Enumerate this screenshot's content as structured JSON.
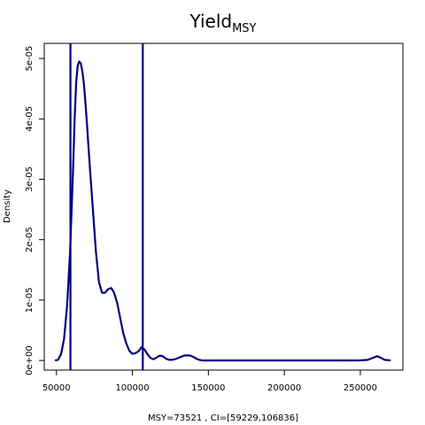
{
  "chart_data": {
    "type": "line",
    "title": {
      "main": "Yield",
      "subscript": "MSY"
    },
    "xlabel": "MSY=73521 , CI=[59229,106836]",
    "ylabel": "Density",
    "xlim": [
      42000,
      278000
    ],
    "ylim": [
      -1.6e-06,
      5.25e-05
    ],
    "x_ticks": [
      {
        "value": 50000,
        "label": "50000"
      },
      {
        "value": 100000,
        "label": "100000"
      },
      {
        "value": 150000,
        "label": "150000"
      },
      {
        "value": 200000,
        "label": "200000"
      },
      {
        "value": 250000,
        "label": "250000"
      }
    ],
    "y_ticks": [
      {
        "value": 0,
        "label": "0e+00"
      },
      {
        "value": 1e-05,
        "label": "1e-05"
      },
      {
        "value": 2e-05,
        "label": "2e-05"
      },
      {
        "value": 3e-05,
        "label": "3e-05"
      },
      {
        "value": 4e-05,
        "label": "4e-05"
      },
      {
        "value": 5e-05,
        "label": "5e-05"
      }
    ],
    "grid": false,
    "line_color": "#000080",
    "ci_lines": [
      59229,
      106836
    ],
    "series": [
      {
        "x": [
          49000,
          51000,
          53000,
          55000,
          57000,
          59000,
          61000,
          62000,
          63000,
          64000,
          65000,
          66000,
          67000,
          68000,
          69000,
          70000,
          72000,
          74000,
          76000,
          78000,
          80000,
          82000,
          84000,
          86000,
          88000,
          90000,
          92000,
          94000,
          96000,
          98000,
          100000,
          102000,
          104000,
          106000,
          108000,
          110000,
          112000,
          114000,
          116000,
          118000,
          120000,
          122000,
          124000,
          126000,
          128000,
          130000,
          132000,
          134000,
          136000,
          138000,
          140000,
          142000,
          144000,
          146000,
          148000,
          150000,
          160000,
          180000,
          200000,
          220000,
          240000,
          250000,
          255000,
          258000,
          261000,
          263000,
          266000,
          270000
        ],
        "y": [
          0,
          1e-07,
          1e-06,
          3.5e-06,
          9e-06,
          1.8e-05,
          3.2e-05,
          4e-05,
          4.6e-05,
          4.88e-05,
          4.95e-05,
          4.92e-05,
          4.8e-05,
          4.6e-05,
          4.3e-05,
          3.95e-05,
          3.2e-05,
          2.5e-05,
          1.8e-05,
          1.3e-05,
          1.12e-05,
          1.12e-05,
          1.18e-05,
          1.2e-05,
          1.12e-05,
          9.5e-06,
          7e-06,
          4.5e-06,
          2.8e-06,
          1.6e-06,
          1.1e-06,
          1.2e-06,
          1.5e-06,
          2.2e-06,
          1.8e-06,
          1e-06,
          4e-07,
          2e-07,
          5e-07,
          8e-07,
          7e-07,
          3e-07,
          1e-07,
          1e-07,
          2e-07,
          4e-07,
          6e-07,
          8e-07,
          8.5e-07,
          8e-07,
          6e-07,
          3e-07,
          1e-07,
          0,
          0,
          0,
          0,
          0,
          0,
          0,
          0,
          1e-08,
          1e-07,
          4e-07,
          7e-07,
          5e-07,
          1e-07,
          0
        ]
      }
    ]
  }
}
